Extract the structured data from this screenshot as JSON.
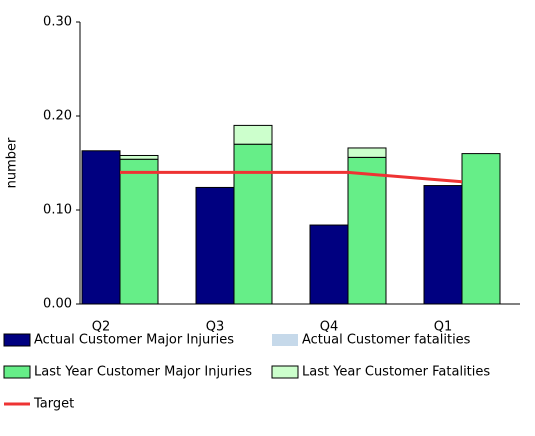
{
  "chart_data": {
    "type": "bar",
    "y_label": "number",
    "categories": [
      "Q2",
      "Q3",
      "Q4",
      "Q1"
    ],
    "ylim": [
      0,
      0.3
    ],
    "yticks": [
      {
        "value": 0,
        "label": "0.00"
      },
      {
        "value": 0.1,
        "label": "0.10"
      },
      {
        "value": 0.2,
        "label": "0.20"
      },
      {
        "value": 0.3,
        "label": "0.30"
      }
    ],
    "stacked": true,
    "series": [
      {
        "name": "Actual Customer Major Injuries",
        "color": "#000080",
        "stack_group": 0,
        "values": [
          0.163,
          0.124,
          0.084,
          0.126
        ]
      },
      {
        "name": "Actual Customer fatalities",
        "color": "#c6d9ea",
        "stack_group": 0,
        "values": [
          0,
          0,
          0,
          0
        ]
      },
      {
        "name": "Last Year Customer Major Injuries",
        "color": "#66ee88",
        "stack_group": 1,
        "values": [
          0.154,
          0.17,
          0.156,
          0.16
        ]
      },
      {
        "name": "Last Year Customer Fatalities",
        "color": "#ccffcc",
        "stack_group": 1,
        "values": [
          0.004,
          0.02,
          0.01,
          0
        ]
      },
      {
        "name": "Target",
        "color": "#ee3333",
        "type": "line",
        "values": [
          0.14,
          0.14,
          0.14,
          0.13
        ]
      }
    ]
  }
}
